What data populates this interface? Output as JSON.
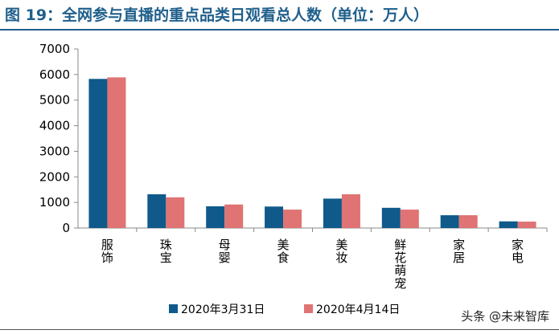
{
  "figure": {
    "title": "图 19：全网参与直播的重点品类日观看总人数（单位：万人）"
  },
  "watermark": "头条 @未来智库",
  "chart_data": {
    "type": "bar",
    "categories": [
      "服饰",
      "珠宝",
      "母婴",
      "美食",
      "美妆",
      "鲜花萌宠",
      "家居",
      "家电"
    ],
    "series": [
      {
        "name": "2020年3月31日",
        "color": "#0f5a8a",
        "values": [
          5830,
          1320,
          850,
          840,
          1150,
          790,
          500,
          260
        ]
      },
      {
        "name": "2020年4月14日",
        "color": "#e07373",
        "values": [
          5890,
          1200,
          920,
          720,
          1320,
          720,
          500,
          250
        ]
      }
    ],
    "yticks": [
      0,
      1000,
      2000,
      3000,
      4000,
      5000,
      6000,
      7000
    ],
    "ylim": [
      0,
      7000
    ],
    "legend": "bottom"
  }
}
